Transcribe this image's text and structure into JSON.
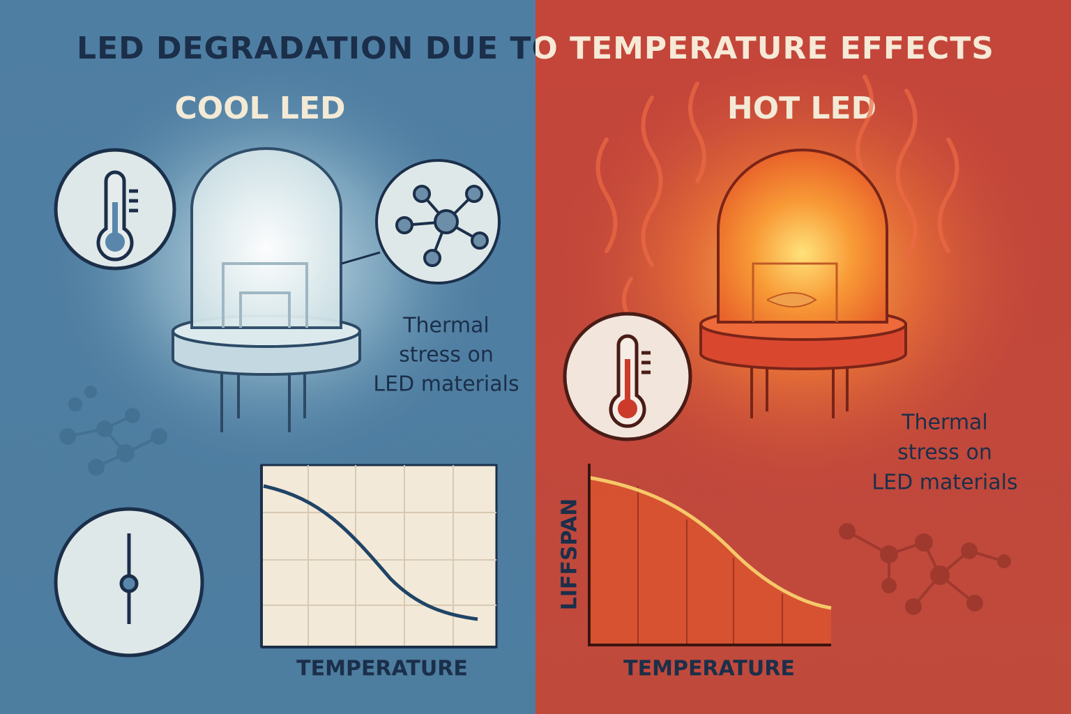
{
  "title": "LED DEGRADATION DUE TO TEMPERATURE EFFECTS",
  "panels": [
    {
      "heading": "COOL LED",
      "caption": [
        "Thermal",
        "stress on",
        "LED materials"
      ],
      "x_axis_label": "TEMPERATURE"
    },
    {
      "heading": "HOT LED",
      "caption": [
        "Thermal",
        "stress on",
        "LED materials"
      ],
      "x_axis_label": "TEMPERATURE",
      "y_axis_label": "LIFFSPAN"
    }
  ]
}
